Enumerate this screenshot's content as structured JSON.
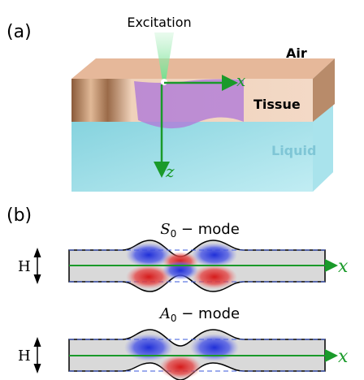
{
  "panel_a": {
    "label": "(a)",
    "excitation": "Excitation",
    "air": "Air",
    "tissue": "Tissue",
    "liquid": "Liquid",
    "axis_x": "x",
    "axis_z": "z"
  },
  "panel_b": {
    "label": "(b)",
    "modes": [
      {
        "symbol": "S",
        "subscript": "0",
        "suffix": " − mode",
        "height_label": "H",
        "axis": "x"
      },
      {
        "symbol": "A",
        "subscript": "0",
        "suffix": " − mode",
        "height_label": "H",
        "axis": "x"
      }
    ]
  }
}
